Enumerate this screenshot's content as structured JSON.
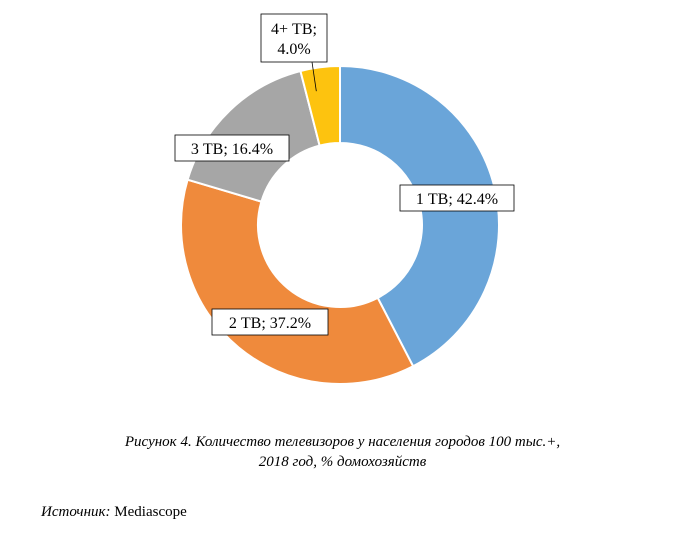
{
  "chart_data": {
    "type": "pie",
    "donut": true,
    "slices": [
      {
        "name": "1 ТВ",
        "value": 42.4,
        "label": "1 ТВ; 42.4%",
        "color": "#6aa5d9"
      },
      {
        "name": "2 ТВ",
        "value": 37.2,
        "label": "2 ТВ; 37.2%",
        "color": "#ef8a3c"
      },
      {
        "name": "3 ТВ",
        "value": 16.4,
        "label": "3 ТВ; 16.4%",
        "color": "#a6a6a6"
      },
      {
        "name": "4+ ТВ",
        "value": 4.0,
        "label_lines": [
          "4+ ТВ;",
          "4.0%"
        ],
        "color": "#fdc30f"
      }
    ],
    "legend": "none"
  },
  "caption": {
    "line1": "Рисунок 4. Количество телевизоров у населения городов 100 тыс.+,",
    "line2": "2018 год, % домохозяйств"
  },
  "source": {
    "label": "Источник:",
    "value": "Mediascope"
  }
}
